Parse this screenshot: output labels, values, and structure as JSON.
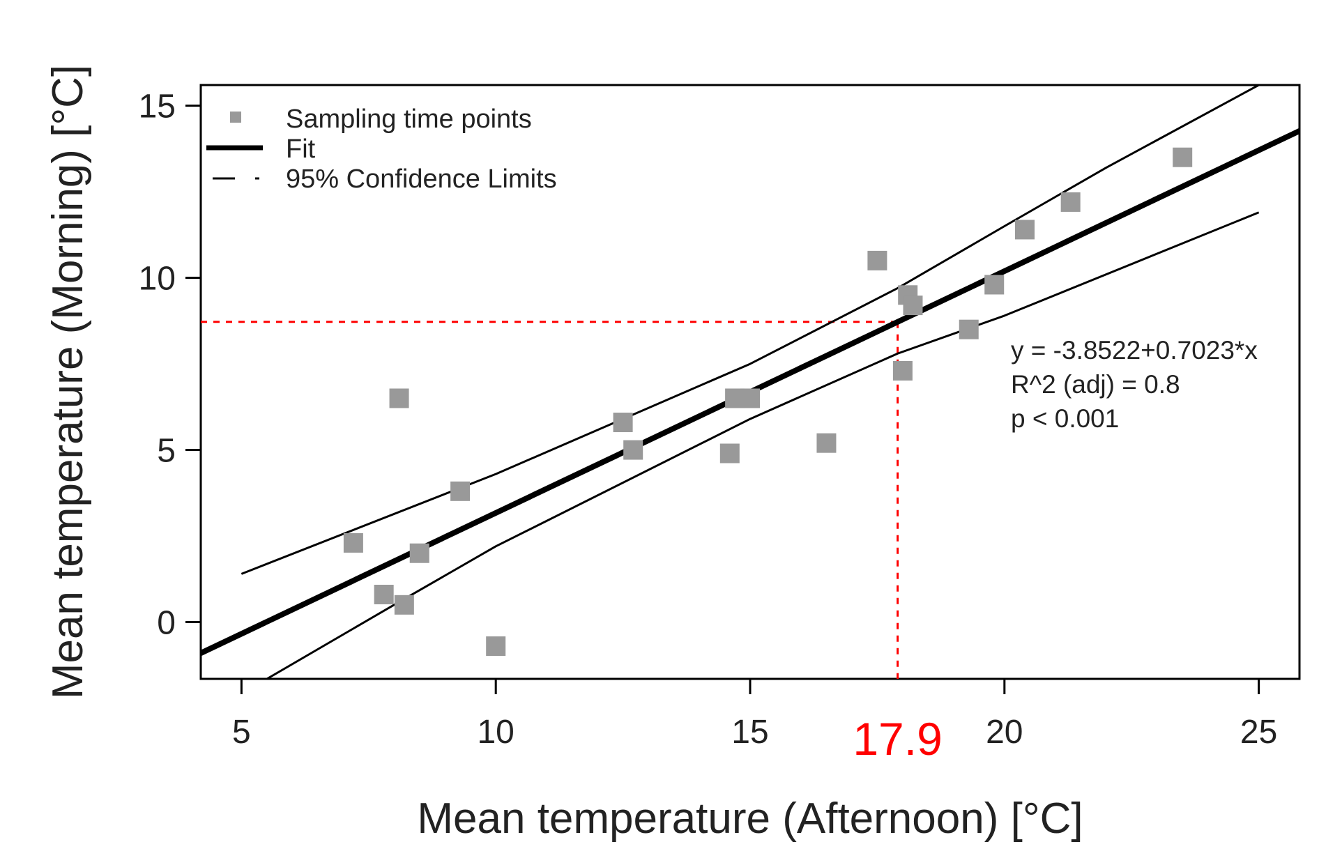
{
  "chart_data": {
    "type": "scatter",
    "title": "",
    "xlabel": "Mean temperature (Afternoon) [°C]",
    "ylabel": "Mean temperature (Morning) [°C]",
    "xlim": [
      4.2,
      25.8
    ],
    "ylim": [
      -1.65,
      15.6
    ],
    "x_ticks": [
      5,
      10,
      15,
      20,
      25
    ],
    "y_ticks": [
      0,
      5,
      10,
      15
    ],
    "grid": false,
    "legend_position": "top-left",
    "legend": {
      "points": "Sampling time points",
      "fit": "Fit",
      "ci": "95% Confidence Limits"
    },
    "series": [
      {
        "name": "Sampling time points",
        "kind": "points",
        "color": "#999999",
        "x": [
          7.2,
          7.8,
          8.1,
          8.2,
          8.5,
          9.3,
          10.0,
          12.5,
          12.7,
          14.6,
          14.7,
          15.0,
          16.5,
          17.5,
          18.0,
          18.1,
          18.2,
          19.3,
          19.8,
          20.4,
          21.3,
          23.5
        ],
        "y": [
          2.3,
          0.8,
          6.5,
          0.5,
          2.0,
          3.8,
          -0.7,
          5.8,
          5.0,
          4.9,
          6.5,
          6.5,
          5.2,
          10.5,
          7.3,
          9.5,
          9.2,
          8.5,
          9.8,
          11.4,
          12.2,
          13.5
        ]
      },
      {
        "name": "Fit",
        "kind": "line",
        "color": "#000000",
        "intercept": -3.8522,
        "slope": 0.7023,
        "x_range": [
          4.2,
          25.8
        ]
      },
      {
        "name": "95% Confidence Limits (upper)",
        "kind": "curve",
        "color": "#000000",
        "x": [
          5,
          10,
          15,
          17.9,
          20,
          22,
          25
        ],
        "y": [
          1.4,
          4.3,
          7.5,
          9.7,
          11.5,
          13.2,
          15.6
        ]
      },
      {
        "name": "95% Confidence Limits (lower)",
        "kind": "curve",
        "color": "#000000",
        "x": [
          5.5,
          8,
          10,
          15,
          17.9,
          20,
          25
        ],
        "y": [
          -1.65,
          0.5,
          2.2,
          5.9,
          7.8,
          8.9,
          11.9
        ]
      }
    ],
    "reference": {
      "x": 17.9,
      "y": 8.72,
      "label": "17.9",
      "color": "#ff0000"
    },
    "annotations": [
      "y = -3.8522+0.7023*x",
      "R^2 (adj) = 0.8",
      "p < 0.001"
    ]
  }
}
